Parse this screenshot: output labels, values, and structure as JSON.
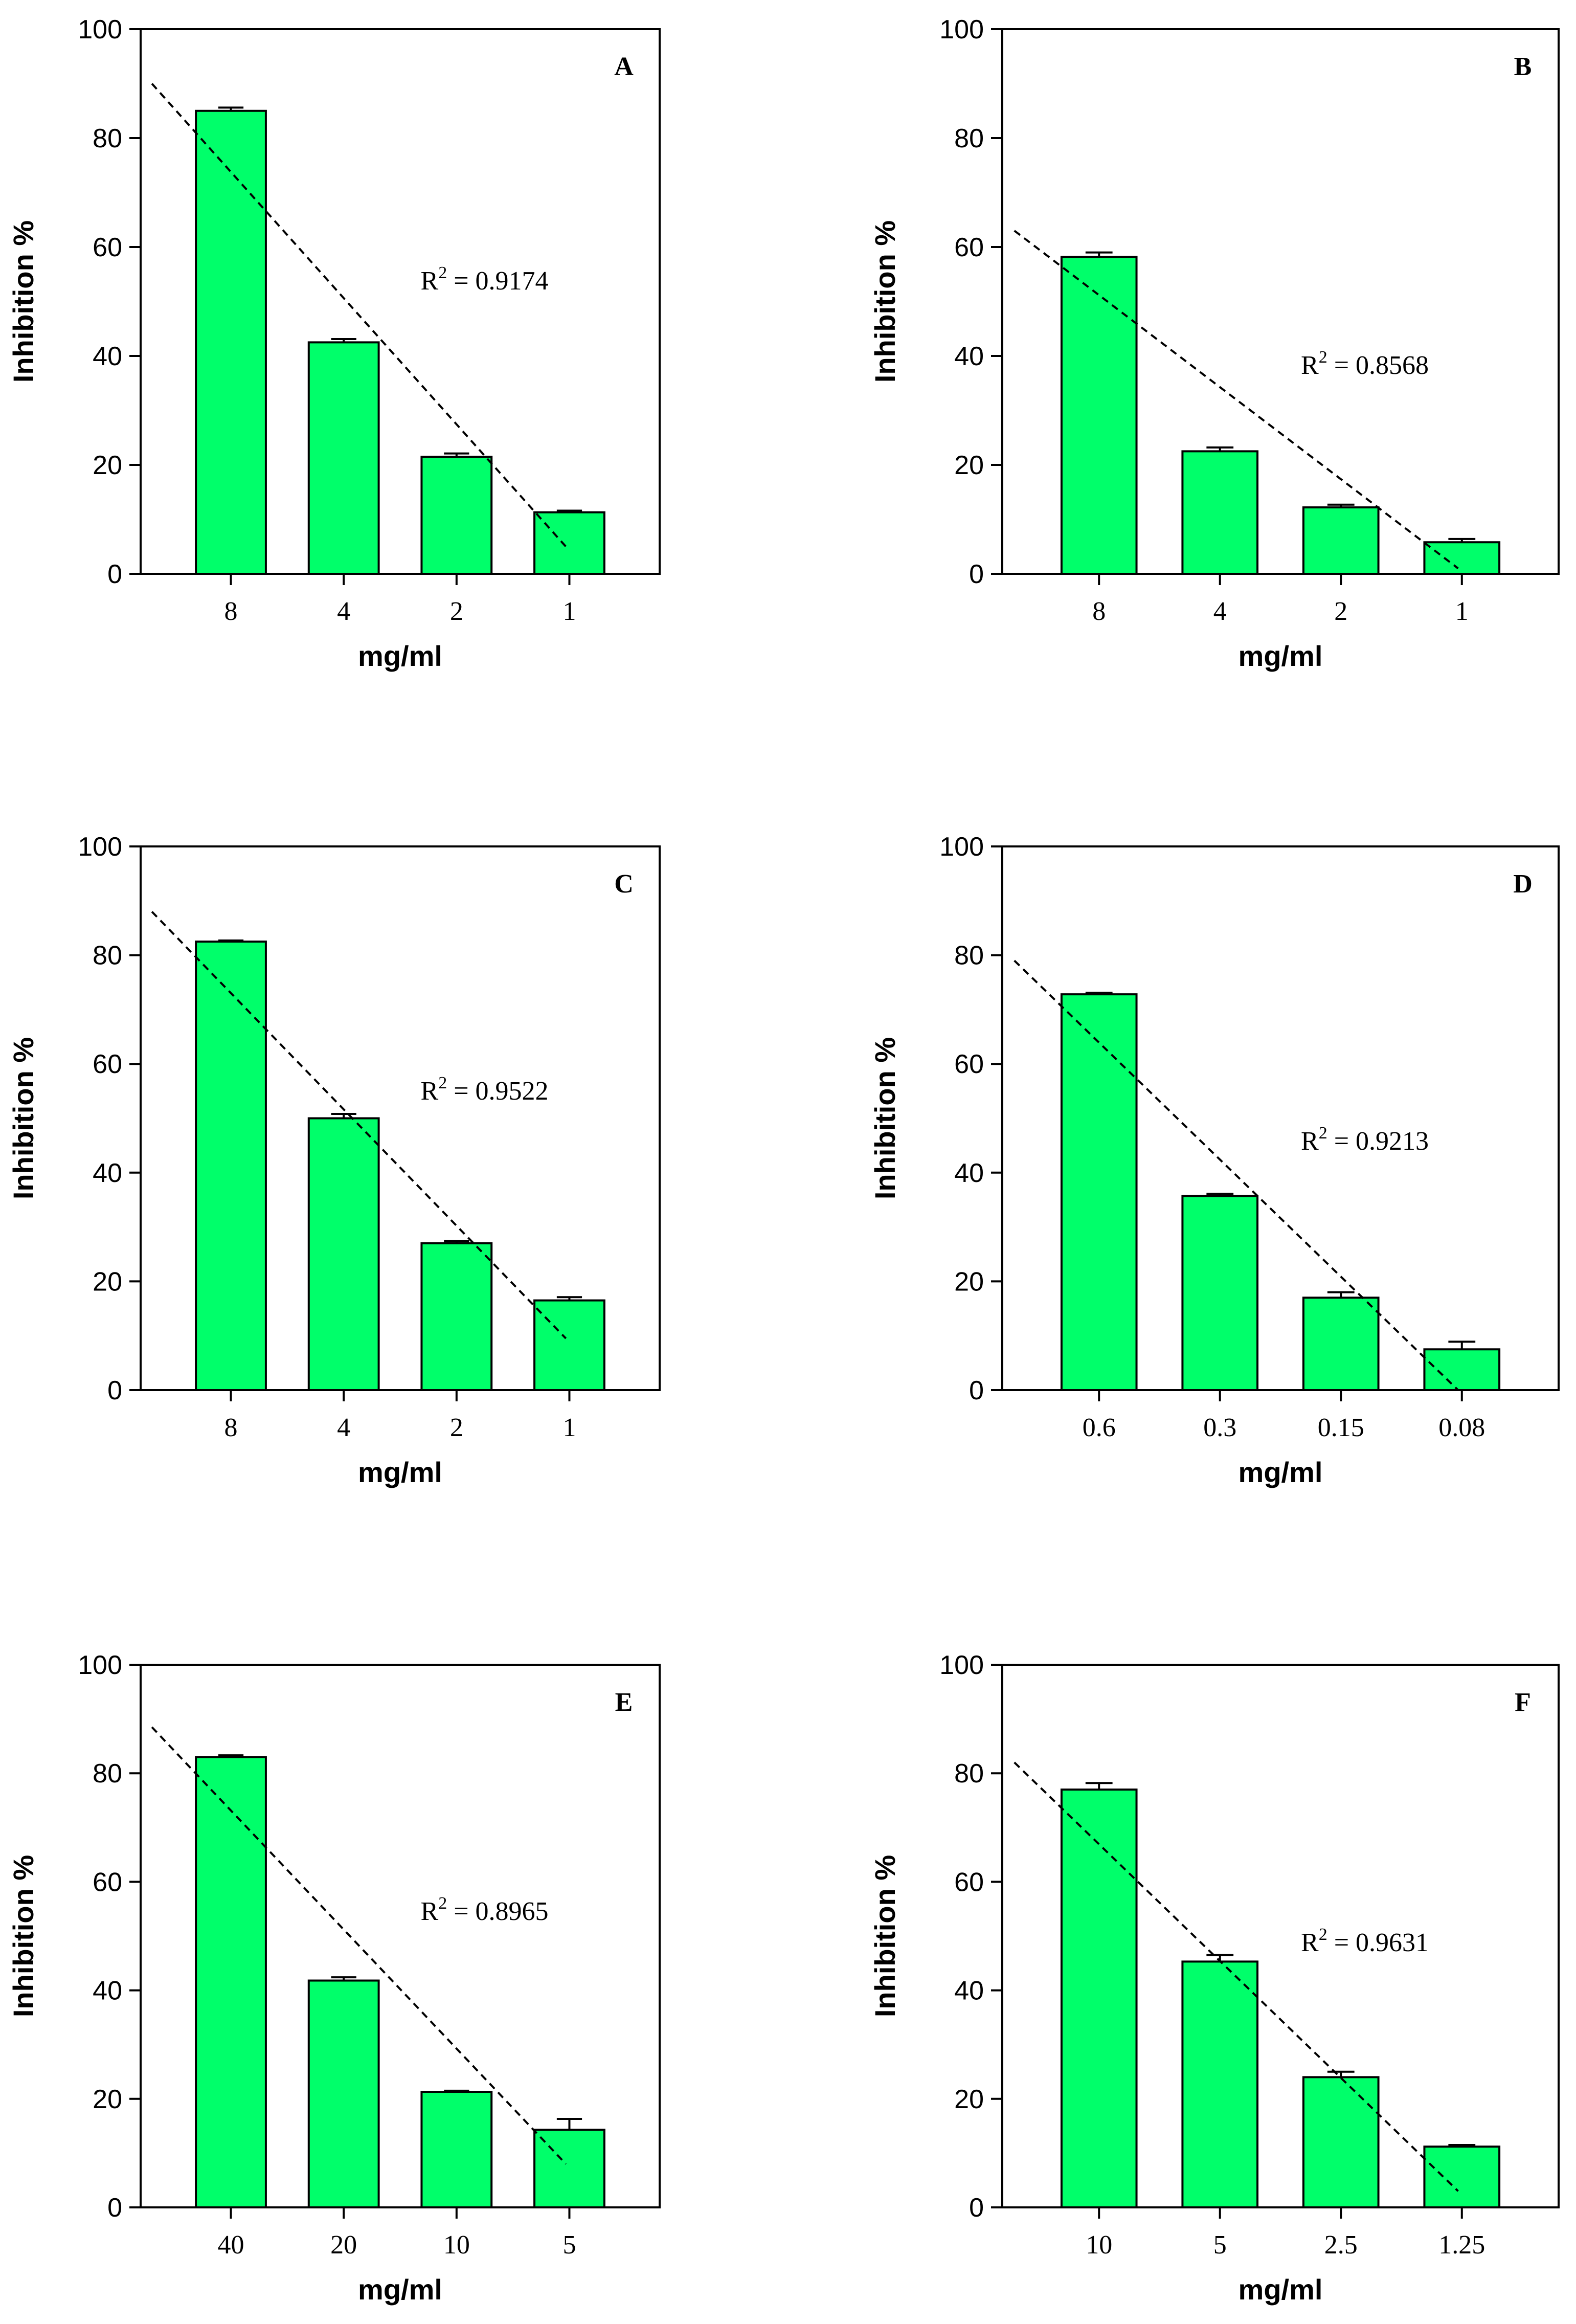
{
  "chart_data": [
    {
      "panel": "A",
      "type": "bar",
      "categories": [
        "8",
        "4",
        "2",
        "1"
      ],
      "values": [
        85,
        42.5,
        21.5,
        11.3
      ],
      "errors": [
        0.6,
        0.6,
        0.6,
        0.3
      ],
      "ylim": [
        0,
        100
      ],
      "yticks": [
        0,
        20,
        40,
        60,
        80,
        100
      ],
      "ytick_labels": [
        "0",
        "20",
        "40",
        "60",
        "80",
        "100"
      ],
      "xlabel": "mg/ml",
      "ylabel": "Inhibition %",
      "r2_text": "R",
      "r2_sup": "2",
      "r2_value": " = 0.9174",
      "trendline": {
        "y_start": 90,
        "y_end": 5
      }
    },
    {
      "panel": "B",
      "type": "bar",
      "categories": [
        "8",
        "4",
        "2",
        "1"
      ],
      "values": [
        58.2,
        22.5,
        12.2,
        5.8
      ],
      "errors": [
        0.8,
        0.7,
        0.5,
        0.6
      ],
      "ylim": [
        0,
        100
      ],
      "yticks": [
        0,
        20,
        40,
        60,
        80,
        100
      ],
      "ytick_labels": [
        "0",
        "20",
        "40",
        "60",
        "80",
        "100"
      ],
      "xlabel": "mg/ml",
      "ylabel": "Inhibition %",
      "r2_text": "R",
      "r2_sup": "2",
      "r2_value": " = 0.8568",
      "trendline": {
        "y_start": 63,
        "y_end": 1
      }
    },
    {
      "panel": "C",
      "type": "bar",
      "categories": [
        "8",
        "4",
        "2",
        "1"
      ],
      "values": [
        82.5,
        50,
        27,
        16.5
      ],
      "errors": [
        0.2,
        0.8,
        0.4,
        0.6
      ],
      "ylim": [
        0,
        100
      ],
      "yticks": [
        0,
        20,
        40,
        60,
        80,
        100
      ],
      "ytick_labels": [
        "0",
        "20",
        "40",
        "60",
        "80",
        "100"
      ],
      "xlabel": "mg/ml",
      "ylabel": "Inhibition %",
      "r2_text": "R",
      "r2_sup": "2",
      "r2_value": " = 0.9522",
      "trendline": {
        "y_start": 88,
        "y_end": 9.5
      }
    },
    {
      "panel": "D",
      "type": "bar",
      "categories": [
        "0.6",
        "0.3",
        "0.15",
        "0.08"
      ],
      "values": [
        72.8,
        35.7,
        17,
        7.5
      ],
      "errors": [
        0.3,
        0.4,
        1.0,
        1.4
      ],
      "ylim": [
        0,
        100
      ],
      "yticks": [
        0,
        20,
        40,
        60,
        80,
        100
      ],
      "ytick_labels": [
        "0",
        "20",
        "40",
        "60",
        "80",
        "100"
      ],
      "xlabel": "mg/ml",
      "ylabel": "Inhibition %",
      "r2_text": "R",
      "r2_sup": "2",
      "r2_value": " = 0.9213",
      "trendline": {
        "y_start": 79,
        "y_end": 0
      }
    },
    {
      "panel": "E",
      "type": "bar",
      "categories": [
        "40",
        "20",
        "10",
        "5"
      ],
      "values": [
        83,
        41.8,
        21.3,
        14.3
      ],
      "errors": [
        0.3,
        0.6,
        0.2,
        2.0
      ],
      "ylim": [
        0,
        100
      ],
      "yticks": [
        0,
        20,
        40,
        60,
        80,
        100
      ],
      "ytick_labels": [
        "0",
        "20",
        "40",
        "60",
        "80",
        "100"
      ],
      "xlabel": "mg/ml",
      "ylabel": "Inhibition %",
      "r2_text": "R",
      "r2_sup": "2",
      "r2_value": " = 0.8965",
      "trendline": {
        "y_start": 88.5,
        "y_end": 8
      }
    },
    {
      "panel": "F",
      "type": "bar",
      "categories": [
        "10",
        "5",
        "2.5",
        "1.25"
      ],
      "values": [
        77,
        45.3,
        24,
        11.2
      ],
      "errors": [
        1.2,
        1.2,
        1.0,
        0.3
      ],
      "ylim": [
        0,
        100
      ],
      "yticks": [
        0,
        20,
        40,
        60,
        80,
        100
      ],
      "ytick_labels": [
        "0",
        "20",
        "40",
        "60",
        "80",
        "100"
      ],
      "xlabel": "mg/ml",
      "ylabel": "Inhibition %",
      "r2_text": "R",
      "r2_sup": "2",
      "r2_value": " = 0.9631",
      "trendline": {
        "y_start": 82,
        "y_end": 3
      }
    }
  ]
}
